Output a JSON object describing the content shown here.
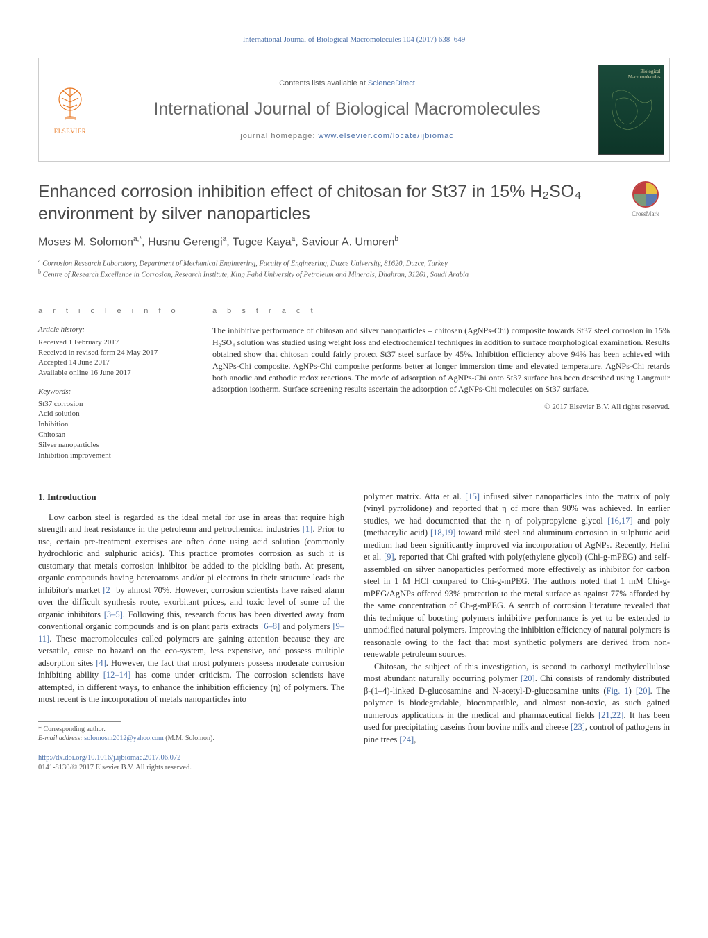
{
  "top_link": "International Journal of Biological Macromolecules 104 (2017) 638–649",
  "header": {
    "elsevier_label": "ELSEVIER",
    "elsevier_color": "#e87722",
    "contents_prefix": "Contents lists available at ",
    "contents_link_text": "ScienceDirect",
    "journal_name": "International Journal of Biological Macromolecules",
    "homepage_prefix": "journal homepage: ",
    "homepage_url": "www.elsevier.com/locate/ijbiomac",
    "cover_label_line1": "Biological",
    "cover_label_line2": "Macromolecules",
    "cover_bg_top": "#1a4a3a",
    "cover_bg_bottom": "#0d3528"
  },
  "crossmark_label": "CrossMark",
  "title": "Enhanced corrosion inhibition effect of chitosan for St37 in 15% H₂SO₄ environment by silver nanoparticles",
  "authors_html": "Moses M. Solomon",
  "authors": [
    {
      "name": "Moses M. Solomon",
      "sup": "a,*"
    },
    {
      "name": "Husnu Gerengi",
      "sup": "a"
    },
    {
      "name": "Tugce Kaya",
      "sup": "a"
    },
    {
      "name": "Saviour A. Umoren",
      "sup": "b"
    }
  ],
  "affiliations": [
    {
      "sup": "a",
      "text": "Corrosion Research Laboratory, Department of Mechanical Engineering, Faculty of Engineering, Duzce University, 81620, Duzce, Turkey"
    },
    {
      "sup": "b",
      "text": "Centre of Research Excellence in Corrosion, Research Institute, King Fahd University of Petroleum and Minerals, Dhahran, 31261, Saudi Arabia"
    }
  ],
  "article_info_label": "a r t i c l e   i n f o",
  "abstract_label": "a b s t r a c t",
  "history_head": "Article history:",
  "history": [
    "Received 1 February 2017",
    "Received in revised form 24 May 2017",
    "Accepted 14 June 2017",
    "Available online 16 June 2017"
  ],
  "keywords_head": "Keywords:",
  "keywords": [
    "St37 corrosion",
    "Acid solution",
    "Inhibition",
    "Chitosan",
    "Silver nanoparticles",
    "Inhibition improvement"
  ],
  "abstract": "The inhibitive performance of chitosan and silver nanoparticles – chitosan (AgNPs-Chi) composite towards St37 steel corrosion in 15% H₂SO₄ solution was studied using weight loss and electrochemical techniques in addition to surface morphological examination. Results obtained show that chitosan could fairly protect St37 steel surface by 45%. Inhibition efficiency above 94% has been achieved with AgNPs-Chi composite. AgNPs-Chi composite performs better at longer immersion time and elevated temperature. AgNPs-Chi retards both anodic and cathodic redox reactions. The mode of adsorption of AgNPs-Chi onto St37 surface has been described using Langmuir adsorption isotherm. Surface screening results ascertain the adsorption of AgNPs-Chi molecules on St37 surface.",
  "copyright": "© 2017 Elsevier B.V. All rights reserved.",
  "section1_heading": "1. Introduction",
  "body_col1": "Low carbon steel is regarded as the ideal metal for use in areas that require high strength and heat resistance in the petroleum and petrochemical industries [1]. Prior to use, certain pre-treatment exercises are often done using acid solution (commonly hydrochloric and sulphuric acids). This practice promotes corrosion as such it is customary that metals corrosion inhibitor be added to the pickling bath. At present, organic compounds having heteroatoms and/or pi electrons in their structure leads the inhibitor's market [2] by almost 70%. However, corrosion scientists have raised alarm over the difficult synthesis route, exorbitant prices, and toxic level of some of the organic inhibitors [3–5]. Following this, research focus has been diverted away from conventional organic compounds and is on plant parts extracts [6–8] and polymers [9–11]. These macromolecules called polymers are gaining attention because they are versatile, cause no hazard on the eco-system, less expensive, and possess multiple adsorption sites [4]. However, the fact that most polymers possess moderate corrosion inhibiting ability [12–14] has come under criticism. The corrosion scientists have attempted, in different ways, to enhance the inhibition efficiency (η) of polymers. The most recent is the incorporation of metals nanoparticles into",
  "body_col2": "polymer matrix. Atta et al. [15] infused silver nanoparticles into the matrix of poly (vinyl pyrrolidone) and reported that η of more than 90% was achieved. In earlier studies, we had documented that the η of polypropylene glycol [16,17] and poly (methacrylic acid) [18,19] toward mild steel and aluminum corrosion in sulphuric acid medium had been significantly improved via incorporation of AgNPs. Recently, Hefni et al. [9], reported that Chi grafted with poly(ethylene glycol) (Chi-g-mPEG) and self-assembled on silver nanoparticles performed more effectively as inhibitor for carbon steel in 1 M HCl compared to Chi-g-mPEG. The authors noted that 1 mM Chi-g-mPEG/AgNPs offered 93% protection to the metal surface as against 77% afforded by the same concentration of Ch-g-mPEG. A search of corrosion literature revealed that this technique of boosting polymers inhibitive performance is yet to be extended to unmodified natural polymers. Improving the inhibition efficiency of natural polymers is reasonable owing to the fact that most synthetic polymers are derived from non-renewable petroleum sources.",
  "body_col2_p2": "Chitosan, the subject of this investigation, is second to carboxyl methylcellulose most abundant naturally occurring polymer [20]. Chi consists of randomly distributed β-(1–4)-linked D-glucosamine and N-acetyl-D-glucosamine units (Fig. 1) [20]. The polymer is biodegradable, biocompatible, and almost non-toxic, as such gained numerous applications in the medical and pharmaceutical fields [21,22]. It has been used for precipitating caseins from bovine milk and cheese [23], control of pathogens in pine trees [24],",
  "footnote_star": "* Corresponding author.",
  "footnote_email_label": "E-mail address:",
  "footnote_email": "solomosm2012@yahoo.com",
  "footnote_email_suffix": "(M.M. Solomon).",
  "doi_url": "http://dx.doi.org/10.1016/j.ijbiomac.2017.06.072",
  "issn_line": "0141-8130/© 2017 Elsevier B.V. All rights reserved.",
  "ref_color": "#4b6fa8",
  "colors": {
    "text": "#333333",
    "muted": "#777777",
    "link": "#4b6fa8",
    "border": "#cccccc",
    "rule": "#bbbbbb"
  }
}
